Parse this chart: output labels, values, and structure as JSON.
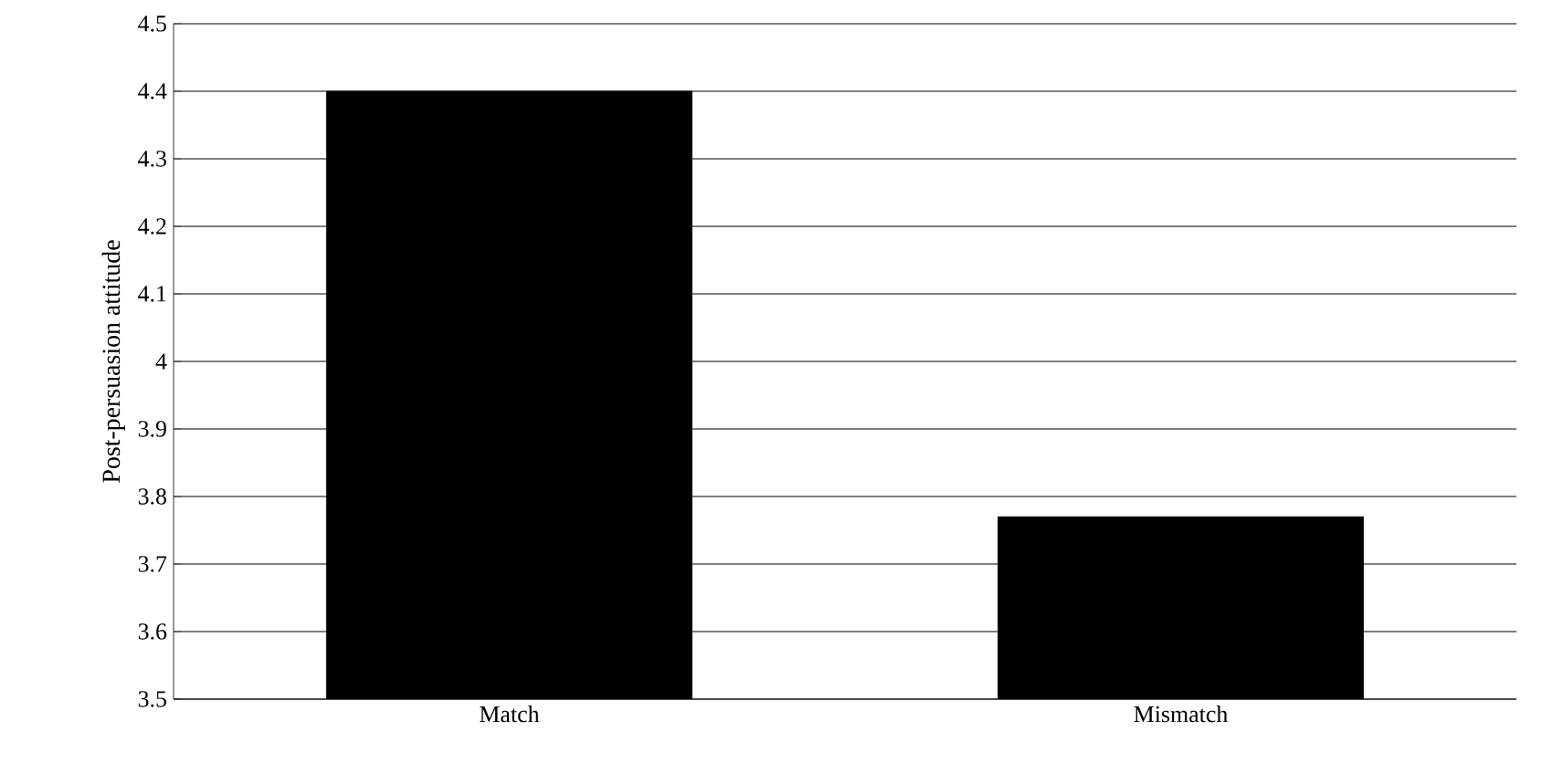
{
  "chart_data": {
    "type": "bar",
    "ylabel": "Post-persuasion attitude",
    "categories": [
      "Match",
      "Mismatch"
    ],
    "values": [
      4.4,
      3.77
    ],
    "color": "#000000",
    "ylim": [
      3.5,
      4.5
    ],
    "yticks": [
      3.5,
      3.6,
      3.7,
      3.8,
      3.9,
      4,
      4.1,
      4.2,
      4.3,
      4.4,
      4.5
    ],
    "grid": "y"
  }
}
